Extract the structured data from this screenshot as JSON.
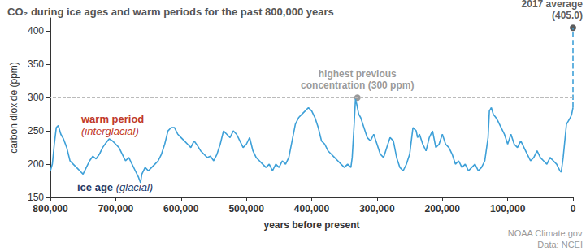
{
  "chart_data": {
    "type": "line",
    "title": "CO₂ during ice ages and warm periods for the past 800,000 years",
    "x_label": "years before present",
    "y_label": "carbon dioxide (ppm)",
    "color": "#3ea0d8",
    "x": [
      800000,
      797000,
      794000,
      791000,
      788000,
      784000,
      780000,
      775000,
      770000,
      765000,
      760000,
      755000,
      750000,
      745000,
      740000,
      735000,
      730000,
      725000,
      720000,
      715000,
      710000,
      705000,
      700000,
      695000,
      690000,
      685000,
      680000,
      675000,
      670000,
      665000,
      662000,
      660000,
      655000,
      650000,
      645000,
      640000,
      635000,
      630000,
      625000,
      620000,
      615000,
      610000,
      605000,
      600000,
      595000,
      590000,
      585000,
      580000,
      575000,
      570000,
      565000,
      560000,
      555000,
      550000,
      545000,
      540000,
      535000,
      530000,
      525000,
      520000,
      515000,
      510000,
      505000,
      500000,
      495000,
      490000,
      485000,
      480000,
      475000,
      470000,
      465000,
      460000,
      455000,
      450000,
      445000,
      440000,
      435000,
      430000,
      425000,
      420000,
      415000,
      410000,
      405000,
      400000,
      395000,
      390000,
      385000,
      380000,
      375000,
      370000,
      365000,
      360000,
      355000,
      350000,
      345000,
      340000,
      338000,
      335000,
      333000,
      331000,
      328000,
      325000,
      320000,
      315000,
      310000,
      305000,
      300000,
      295000,
      290000,
      285000,
      280000,
      275000,
      270000,
      265000,
      260000,
      255000,
      250000,
      245000,
      240000,
      238000,
      235000,
      230000,
      225000,
      220000,
      215000,
      210000,
      205000,
      200000,
      195000,
      190000,
      185000,
      180000,
      175000,
      170000,
      165000,
      160000,
      155000,
      150000,
      145000,
      140000,
      135000,
      130000,
      128000,
      125000,
      122000,
      118000,
      115000,
      110000,
      105000,
      100000,
      95000,
      90000,
      85000,
      80000,
      75000,
      70000,
      65000,
      60000,
      55000,
      50000,
      45000,
      40000,
      35000,
      30000,
      25000,
      20000,
      18000,
      15000,
      12000,
      10000,
      7000,
      4000,
      2000,
      0
    ],
    "values": [
      190,
      200,
      230,
      255,
      258,
      245,
      238,
      225,
      205,
      200,
      195,
      190,
      185,
      195,
      205,
      212,
      208,
      215,
      225,
      232,
      238,
      235,
      230,
      225,
      215,
      205,
      210,
      200,
      190,
      180,
      172,
      185,
      195,
      190,
      195,
      200,
      205,
      215,
      230,
      250,
      255,
      255,
      245,
      240,
      235,
      230,
      225,
      235,
      228,
      220,
      215,
      210,
      212,
      205,
      215,
      230,
      250,
      245,
      240,
      250,
      245,
      235,
      225,
      230,
      240,
      220,
      210,
      205,
      200,
      195,
      200,
      190,
      200,
      195,
      205,
      200,
      210,
      235,
      260,
      270,
      275,
      280,
      285,
      280,
      270,
      255,
      235,
      230,
      220,
      215,
      210,
      205,
      200,
      195,
      200,
      195,
      210,
      260,
      298,
      290,
      275,
      270,
      255,
      240,
      235,
      245,
      230,
      215,
      210,
      225,
      240,
      235,
      210,
      195,
      190,
      200,
      215,
      255,
      250,
      240,
      245,
      230,
      220,
      240,
      250,
      225,
      230,
      245,
      230,
      225,
      215,
      200,
      205,
      195,
      200,
      190,
      195,
      200,
      190,
      195,
      205,
      240,
      280,
      285,
      275,
      270,
      265,
      255,
      245,
      230,
      245,
      230,
      225,
      235,
      225,
      215,
      205,
      210,
      220,
      210,
      205,
      200,
      210,
      205,
      200,
      190,
      188,
      210,
      240,
      260,
      265,
      270,
      275,
      285
    ],
    "xlim": [
      800000,
      0
    ],
    "xticks": [
      {
        "value": 800000,
        "label": "800,000"
      },
      {
        "value": 700000,
        "label": "700,000"
      },
      {
        "value": 600000,
        "label": "600,000"
      },
      {
        "value": 500000,
        "label": "500,000"
      },
      {
        "value": 400000,
        "label": "400,000"
      },
      {
        "value": 300000,
        "label": "300,000"
      },
      {
        "value": 200000,
        "label": "200,000"
      },
      {
        "value": 100000,
        "label": "100,000"
      },
      0
    ],
    "ylim": [
      150,
      420
    ],
    "yticks": [
      150,
      200,
      250,
      300,
      350,
      400
    ],
    "grid": false,
    "annotations": [
      {
        "text": "highest previous\nconcentration (300 ppm)",
        "x": 330000,
        "y": 300,
        "color": "#7f7f7f"
      },
      {
        "text": "2017 average\n(405.0)",
        "x": 0,
        "y": 405.0,
        "color": "#333333"
      }
    ],
    "labels": [
      {
        "text": "warm period\n(interglacial)",
        "color": "#c0392b"
      },
      {
        "text": "ice age (glacial)",
        "color": "#1f3864"
      }
    ],
    "source": [
      "NOAA Climate.gov",
      "Data: NCEI"
    ]
  }
}
